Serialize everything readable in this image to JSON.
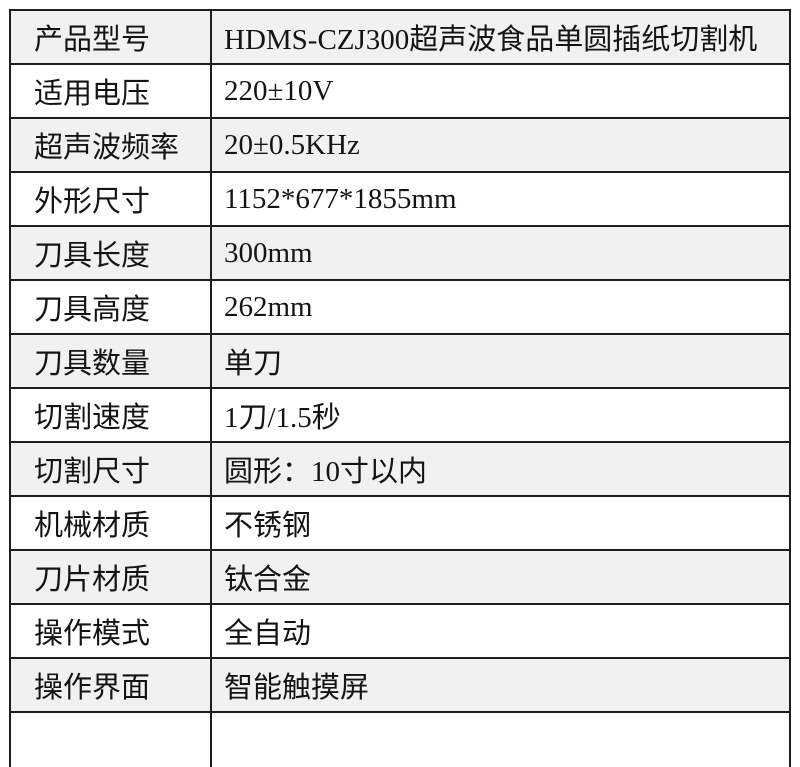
{
  "table": {
    "rows": [
      {
        "label": "产品型号",
        "value": "HDMS-CZJ300超声波食品单圆插纸切割机"
      },
      {
        "label": "适用电压",
        "value": "220±10V"
      },
      {
        "label": "超声波频率",
        "value": "20±0.5KHz"
      },
      {
        "label": "外形尺寸",
        "value": "1152*677*1855mm"
      },
      {
        "label": "刀具长度",
        "value": "300mm"
      },
      {
        "label": "刀具高度",
        "value": "262mm"
      },
      {
        "label": "刀具数量",
        "value": "单刀"
      },
      {
        "label": "切割速度",
        "value": "1刀/1.5秒"
      },
      {
        "label": "切割尺寸",
        "value": "圆形：10寸以内"
      },
      {
        "label": "机械材质",
        "value": "不锈钢"
      },
      {
        "label": "刀片材质",
        "value": "钛合金"
      },
      {
        "label": "操作模式",
        "value": "全自动"
      },
      {
        "label": "操作界面",
        "value": "智能触摸屏"
      }
    ],
    "colors": {
      "border": "#1e1e1e",
      "text": "#141414",
      "row_bg": "#ffffff",
      "row_alt_bg": "#f1f1f1"
    }
  }
}
